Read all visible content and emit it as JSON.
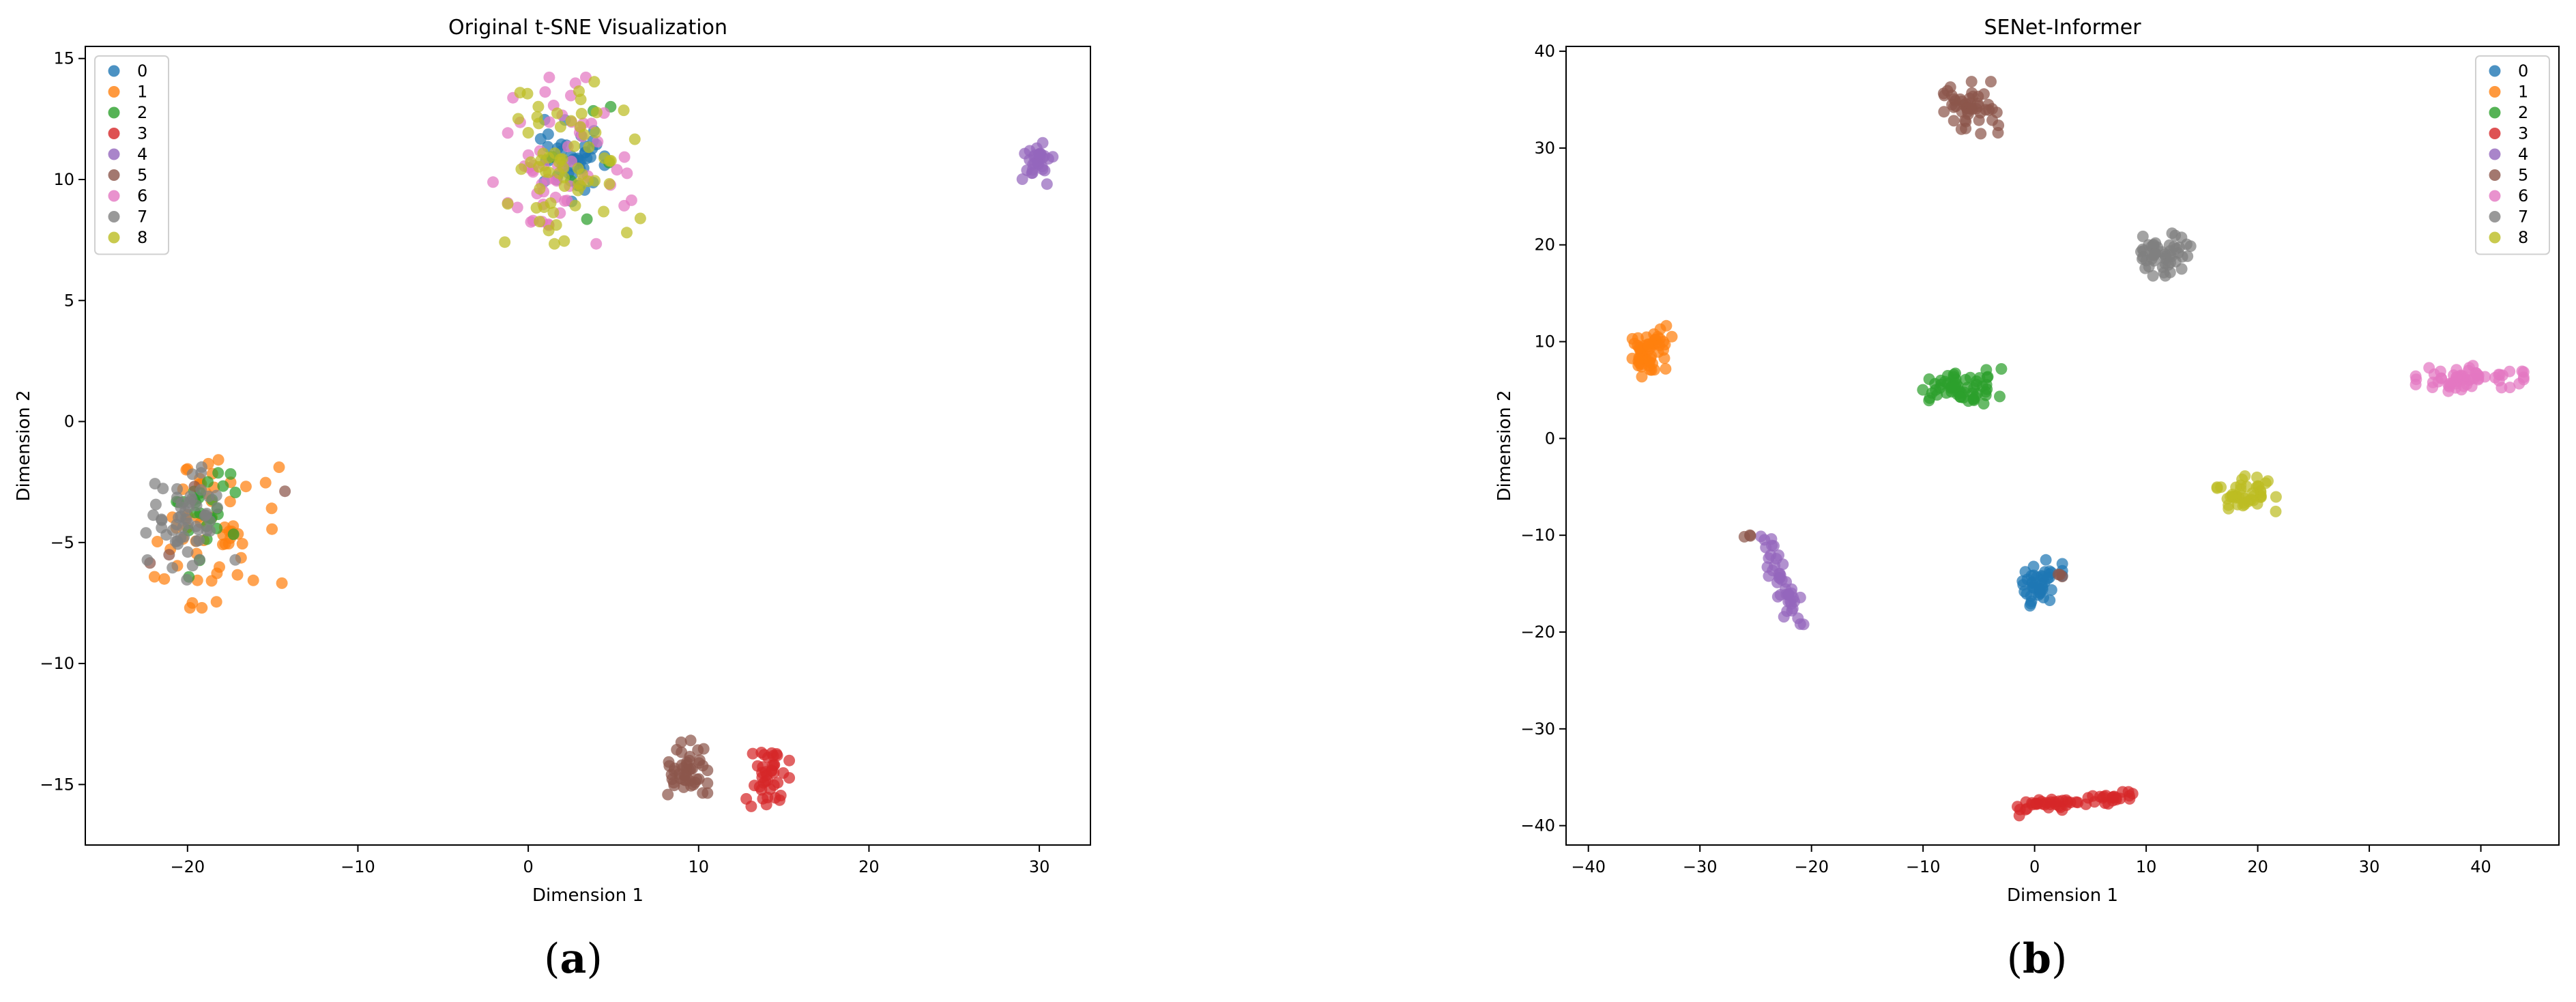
{
  "colors": [
    "#1f77b4",
    "#ff7f0e",
    "#2ca02c",
    "#d62728",
    "#9467bd",
    "#8c564b",
    "#e377c2",
    "#7f7f7f",
    "#bcbd22"
  ],
  "captions": [
    {
      "open": "(",
      "letter": "a",
      "close": ")"
    },
    {
      "open": "(",
      "letter": "b",
      "close": ")"
    }
  ],
  "chart_data": [
    {
      "type": "scatter",
      "title": "Original t-SNE Visualization",
      "xlabel": "Dimension 1",
      "ylabel": "Dimension 2",
      "xlim": [
        -26,
        33
      ],
      "ylim": [
        -17.5,
        15.5
      ],
      "xticks": [
        -20,
        -10,
        0,
        10,
        20,
        30
      ],
      "yticks": [
        -15,
        -10,
        -5,
        0,
        5,
        10,
        15
      ],
      "tick_labels_x": [
        "−20",
        "−10",
        "0",
        "10",
        "20",
        "30"
      ],
      "tick_labels_y": [
        "−15",
        "−10",
        "−5",
        "0",
        "5",
        "10",
        "15"
      ],
      "grid": false,
      "legend": {
        "placement": "top-left"
      },
      "series": [
        {
          "name": "0",
          "color": "#1f77b4",
          "clusters": [
            {
              "cx": 2.5,
              "cy": 10.8,
              "sx": 0.9,
              "sy": 0.9,
              "n": 45
            }
          ]
        },
        {
          "name": "1",
          "color": "#ff7f0e",
          "clusters": [
            {
              "cx": -18.2,
              "cy": -4.4,
              "sx": 1.7,
              "sy": 1.5,
              "n": 60
            }
          ]
        },
        {
          "name": "2",
          "color": "#2ca02c",
          "clusters": [
            {
              "cx": -19.2,
              "cy": -4.0,
              "sx": 1.0,
              "sy": 1.1,
              "n": 28
            },
            {
              "cx": 3.5,
              "cy": 11.0,
              "sx": 1.2,
              "sy": 1.2,
              "n": 6
            }
          ]
        },
        {
          "name": "3",
          "color": "#d62728",
          "clusters": [
            {
              "cx": 14.0,
              "cy": -14.7,
              "sx": 0.6,
              "sy": 0.7,
              "n": 40
            }
          ]
        },
        {
          "name": "4",
          "color": "#9467bd",
          "clusters": [
            {
              "cx": 29.8,
              "cy": 10.8,
              "sx": 0.45,
              "sy": 0.45,
              "n": 30
            }
          ]
        },
        {
          "name": "5",
          "color": "#8c564b",
          "clusters": [
            {
              "cx": 9.2,
              "cy": -14.5,
              "sx": 0.6,
              "sy": 0.6,
              "n": 45
            },
            {
              "cx": -19.0,
              "cy": -4.6,
              "sx": 2.5,
              "sy": 1.0,
              "n": 4
            }
          ]
        },
        {
          "name": "6",
          "color": "#e377c2",
          "clusters": [
            {
              "cx": 2.3,
              "cy": 10.7,
              "sx": 2.0,
              "sy": 1.6,
              "n": 60
            }
          ]
        },
        {
          "name": "7",
          "color": "#7f7f7f",
          "clusters": [
            {
              "cx": -19.8,
              "cy": -3.9,
              "sx": 1.2,
              "sy": 1.2,
              "n": 55
            }
          ]
        },
        {
          "name": "8",
          "color": "#bcbd22",
          "clusters": [
            {
              "cx": 2.4,
              "cy": 10.6,
              "sx": 1.9,
              "sy": 1.6,
              "n": 65
            }
          ]
        }
      ]
    },
    {
      "type": "scatter",
      "title": "SENet-Informer",
      "xlabel": "Dimension 1",
      "ylabel": "Dimension 2",
      "xlim": [
        -42,
        47
      ],
      "ylim": [
        -42,
        40.5
      ],
      "xticks": [
        -40,
        -30,
        -20,
        -10,
        0,
        10,
        20,
        30,
        40
      ],
      "yticks": [
        -40,
        -30,
        -20,
        -10,
        0,
        10,
        20,
        30,
        40
      ],
      "tick_labels_x": [
        "−40",
        "−30",
        "−20",
        "−10",
        "0",
        "10",
        "20",
        "30",
        "40"
      ],
      "tick_labels_y": [
        "−40",
        "−30",
        "−20",
        "−10",
        "0",
        "10",
        "20",
        "30",
        "40"
      ],
      "grid": false,
      "legend": {
        "placement": "top-right"
      },
      "series": [
        {
          "name": "0",
          "color": "#1f77b4",
          "clusters": [
            {
              "cx": 0.5,
              "cy": -15.0,
              "sx": 0.9,
              "sy": 1.2,
              "n": 45
            }
          ]
        },
        {
          "name": "1",
          "color": "#ff7f0e",
          "clusters": [
            {
              "cx": -34.5,
              "cy": 9.0,
              "sx": 0.9,
              "sy": 1.2,
              "n": 55
            }
          ]
        },
        {
          "name": "2",
          "color": "#2ca02c",
          "clusters": [
            {
              "cx": -6.5,
              "cy": 5.2,
              "sx": 1.6,
              "sy": 0.9,
              "n": 60
            }
          ]
        },
        {
          "name": "3",
          "color": "#d62728",
          "line": {
            "x0": -1.5,
            "y0": -38.2,
            "x1": 8.5,
            "y1": -36.8,
            "spread": 0.3,
            "n": 55
          }
        },
        {
          "name": "4",
          "color": "#9467bd",
          "line": {
            "x0": -24.5,
            "y0": -10.0,
            "x1": -21.0,
            "y1": -19.0,
            "spread": 0.4,
            "n": 45
          }
        },
        {
          "name": "5",
          "color": "#8c564b",
          "clusters": [
            {
              "cx": -5.8,
              "cy": 34.0,
              "sx": 1.3,
              "sy": 1.3,
              "n": 50
            },
            {
              "cx": -25.5,
              "cy": -10.0,
              "sx": 0.3,
              "sy": 0.2,
              "n": 3
            },
            {
              "cx": 2.3,
              "cy": -14.2,
              "sx": 0.3,
              "sy": 0.3,
              "n": 3
            }
          ]
        },
        {
          "name": "6",
          "color": "#e377c2",
          "clusters": [
            {
              "cx": 39.0,
              "cy": 6.2,
              "sx": 2.2,
              "sy": 0.6,
              "n": 60
            }
          ]
        },
        {
          "name": "7",
          "color": "#7f7f7f",
          "clusters": [
            {
              "cx": 11.5,
              "cy": 19.0,
              "sx": 1.2,
              "sy": 1.0,
              "n": 50
            }
          ]
        },
        {
          "name": "8",
          "color": "#bcbd22",
          "clusters": [
            {
              "cx": 19.0,
              "cy": -5.8,
              "sx": 1.2,
              "sy": 0.9,
              "n": 45
            }
          ]
        }
      ]
    }
  ]
}
